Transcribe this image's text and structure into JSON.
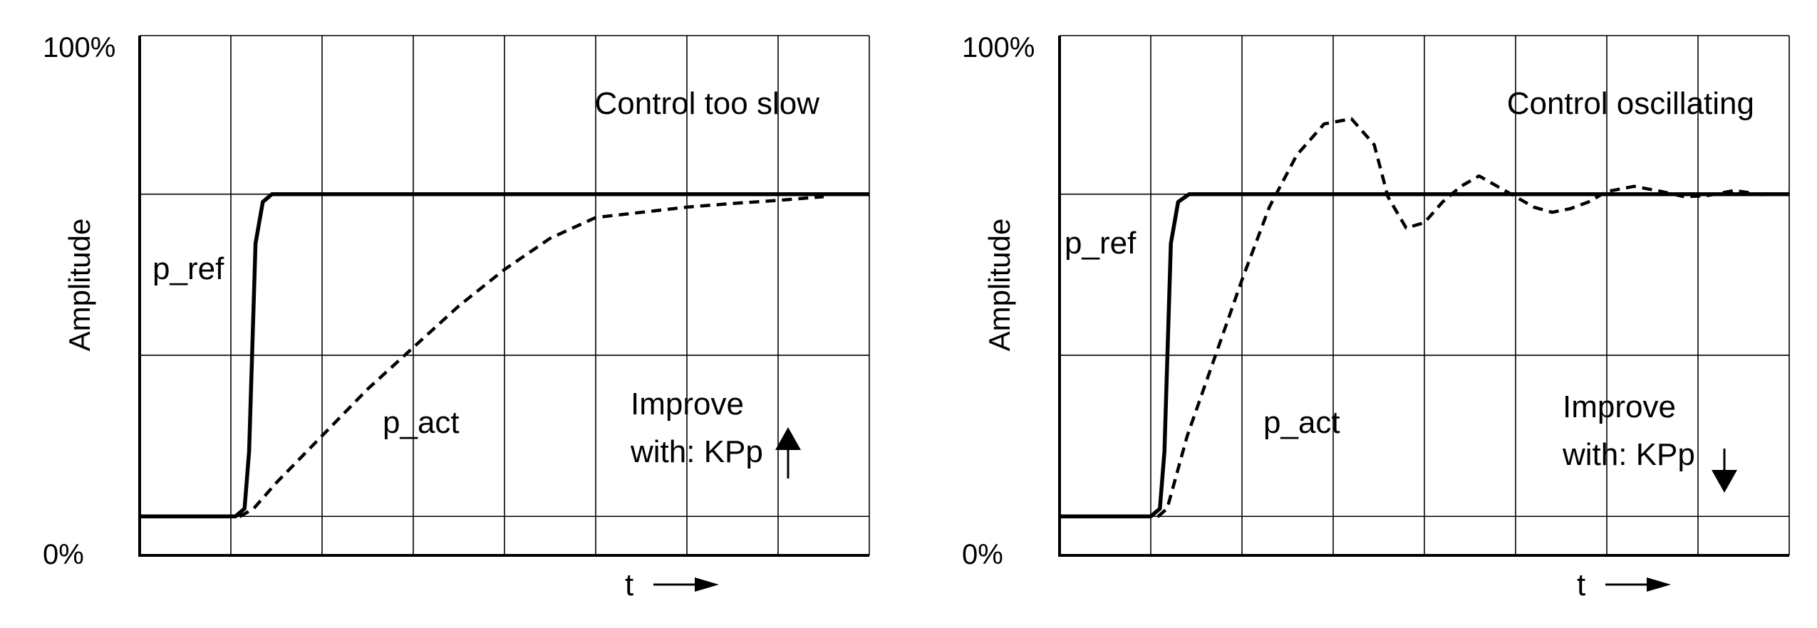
{
  "chart_data": [
    {
      "type": "line",
      "xlim": [
        0,
        8
      ],
      "ylim": [
        0,
        100
      ],
      "x_grid_lines": 8,
      "y_grid_levels": [
        7.5,
        38.5,
        69.5,
        100
      ],
      "y_tick_labels": [
        "0%",
        "100%"
      ],
      "ylabel": "Amplitude",
      "xlabel": "t",
      "annotation": "Control too slow",
      "improve_line1": "Improve",
      "improve_line2": "with: KPp",
      "improve_direction": "up",
      "series": [
        {
          "name": "p_ref",
          "style": "solid",
          "x": [
            0,
            1.05,
            1.15,
            1.2,
            1.27,
            1.35,
            1.45,
            8
          ],
          "y": [
            7.5,
            7.5,
            9,
            20,
            60,
            68,
            69.5,
            69.5
          ]
        },
        {
          "name": "p_act",
          "style": "dashed",
          "x": [
            0.2,
            1.1,
            1.25,
            1.5,
            2,
            2.5,
            3,
            3.5,
            4,
            4.5,
            5,
            5.5,
            6,
            6.5,
            7,
            7.5
          ],
          "y": [
            7.5,
            7.5,
            9,
            14,
            23,
            32,
            40,
            48,
            55,
            61,
            65,
            66,
            67,
            67.7,
            68.3,
            69
          ]
        }
      ]
    },
    {
      "type": "line",
      "xlim": [
        0,
        8
      ],
      "ylim": [
        0,
        100
      ],
      "x_grid_lines": 8,
      "y_grid_levels": [
        7.5,
        38.5,
        69.5,
        100
      ],
      "y_tick_labels": [
        "0%",
        "100%"
      ],
      "ylabel": "Amplitude",
      "xlabel": "t",
      "annotation": "Control oscillating",
      "improve_line1": "Improve",
      "improve_line2": "with: KPp",
      "improve_direction": "down",
      "series": [
        {
          "name": "p_ref",
          "style": "solid",
          "x": [
            0,
            1.0,
            1.1,
            1.15,
            1.22,
            1.3,
            1.42,
            8
          ],
          "y": [
            7.5,
            7.5,
            9,
            20,
            60,
            68,
            69.5,
            69.5
          ]
        },
        {
          "name": "p_act",
          "style": "dashed",
          "x": [
            0,
            1.08,
            1.18,
            1.4,
            1.7,
            2.0,
            2.3,
            2.6,
            2.9,
            3.2,
            3.45,
            3.6,
            3.8,
            4.0,
            4.2,
            4.4,
            4.6,
            4.9,
            5.2,
            5.4,
            5.6,
            5.8,
            6.0,
            6.3,
            6.6,
            6.85,
            7.1,
            7.4,
            7.7,
            8.0
          ],
          "y": [
            7.5,
            7.5,
            9,
            23,
            38,
            53,
            67,
            77,
            83,
            84,
            79,
            69,
            63,
            64,
            68,
            71,
            73,
            70,
            67,
            66,
            66.7,
            68,
            70,
            71,
            70,
            69,
            69.2,
            70.2,
            69.4,
            69.6
          ]
        }
      ]
    }
  ]
}
